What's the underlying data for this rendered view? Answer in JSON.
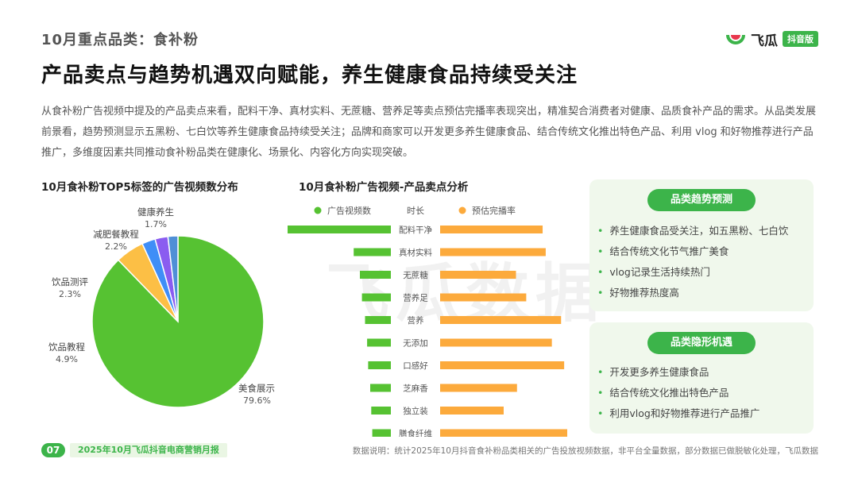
{
  "header": {
    "subtitle": "10月重点品类：食补粉",
    "headline": "产品卖点与趋势机遇双向赋能，养生健康食品持续受关注",
    "logo_text": "飞瓜",
    "logo_badge": "抖音版"
  },
  "summary": "从食补粉广告视频中提及的产品卖点来看，配料干净、真材实料、无蔗糖、营养足等卖点预估完播率表现突出，精准契合消费者对健康、品质食补产品的需求。从品类发展前景看，趋势预测显示五黑粉、七白饮等养生健康食品持续受关注；品牌和商家可以开发更多养生健康食品、结合传统文化推出特色产品、利用 vlog 和好物推荐进行产品推广，多维度因素共同推动食补粉品类在健康化、场景化、内容化方向实现突破。",
  "watermark": "飞瓜数据",
  "chart_data": [
    {
      "type": "pie",
      "title": "10月食补粉TOP5标签的广告视频数分布",
      "slices": [
        {
          "label": "美食展示",
          "value": 79.6,
          "display": "79.6%",
          "color": "#56c232"
        },
        {
          "label": "饮品教程",
          "value": 4.9,
          "display": "4.9%",
          "color": "#fcbf45"
        },
        {
          "label": "饮品测评",
          "value": 2.3,
          "display": "2.3%",
          "color": "#3f8ef7"
        },
        {
          "label": "减肥餐教程",
          "value": 2.2,
          "display": "2.2%",
          "color": "#8a5cf0"
        },
        {
          "label": "健康养生",
          "value": 1.7,
          "display": "1.7%",
          "color": "#4f8fd6"
        }
      ]
    },
    {
      "type": "bar",
      "title": "10月食补粉广告视频-产品卖点分析",
      "legend": [
        {
          "name": "广告视频数",
          "color": "#56c232"
        },
        {
          "name": "时长",
          "color": null
        },
        {
          "name": "预估完播率",
          "color": "#fcaa3c"
        }
      ],
      "categories": [
        "配料干净",
        "真材实料",
        "无蔗糖",
        "营养足",
        "营养",
        "无添加",
        "口感好",
        "芝麻香",
        "独立装",
        "膳食纤维"
      ],
      "series": [
        {
          "name": "广告视频数",
          "values": [
            100,
            36,
            30,
            28,
            25,
            23,
            22,
            20,
            19,
            18
          ]
        },
        {
          "name": "预估完播率",
          "values": [
            100,
            103,
            74,
            84,
            118,
            109,
            121,
            75,
            62,
            124
          ]
        }
      ],
      "value_axis": "relative index (unlabeled)"
    }
  ],
  "panels": [
    {
      "title": "品类趋势预测",
      "items": [
        "养生健康食品受关注，如五黑粉、七白饮",
        "结合传统文化节气推广美食",
        "vlog记录生活持续热门",
        "好物推荐热度高"
      ]
    },
    {
      "title": "品类隐形机遇",
      "items": [
        "开发更多养生健康食品",
        "结合传统文化推出特色产品",
        "利用vlog和好物推荐进行产品推广"
      ]
    }
  ],
  "footer": {
    "page": "07",
    "report": "2025年10月飞瓜抖音电商营销月报",
    "note": "数据说明：统计2025年10月抖音食补粉品类相关的广告投放视频数据，非平台全量数据，部分数据已做脱敏化处理，飞瓜数据"
  },
  "colors": {
    "accent": "#3cb44a",
    "green": "#56c232",
    "orange": "#fcaa3c"
  }
}
